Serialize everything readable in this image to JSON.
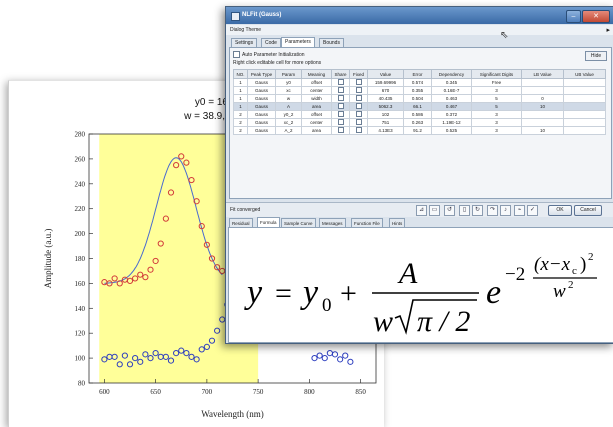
{
  "plot": {
    "annotation_line1": "y0 = 160, xc = 670",
    "annotation_line2": "w = 38.9, A = 4.92E+03",
    "ylabel": "Amplitude (a.u.)",
    "xlabel": "Wavelength (nm)",
    "highlight_color": "#ffff99",
    "series_red_color": "#d23b3b",
    "series_blue_color": "#2e3fbf",
    "fit_line_color": "#4a6bd0"
  },
  "chart_data": {
    "type": "scatter",
    "xlabel": "Wavelength (nm)",
    "ylabel": "Amplitude (a.u.)",
    "xlim": [
      585,
      865
    ],
    "ylim": [
      80,
      280
    ],
    "xticks": [
      "600",
      "650",
      "700",
      "750",
      "800",
      "850"
    ],
    "yticks": [
      "80",
      "100",
      "120",
      "140",
      "160",
      "180",
      "200",
      "220",
      "240",
      "260",
      "280"
    ],
    "highlight_range": [
      595,
      750
    ],
    "fit": {
      "model": "Gauss",
      "y0": 160,
      "xc": 670,
      "w": 38.9,
      "A": 4920
    },
    "series": [
      {
        "color": "#d23b3b",
        "x": [
          600,
          605,
          610,
          615,
          620,
          625,
          630,
          635,
          640,
          645,
          650,
          655,
          660,
          665,
          670,
          675,
          680,
          685,
          690,
          695,
          700,
          705,
          710,
          715
        ],
        "y": [
          161,
          160,
          164,
          160,
          163,
          162,
          164,
          167,
          165,
          171,
          178,
          192,
          212,
          233,
          255,
          262,
          257,
          243,
          226,
          206,
          191,
          180,
          173,
          170
        ]
      },
      {
        "color": "#2e3fbf",
        "x": [
          600,
          605,
          610,
          615,
          620,
          625,
          630,
          635,
          640,
          645,
          650,
          655,
          660,
          665,
          670,
          675,
          680,
          685,
          690,
          695,
          700,
          705,
          710,
          715,
          720,
          725,
          730,
          735,
          740,
          805,
          810,
          815,
          820,
          825,
          830,
          835,
          840
        ],
        "y": [
          99,
          101,
          101,
          95,
          102,
          95,
          100,
          97,
          103,
          100,
          104,
          101,
          101,
          98,
          104,
          106,
          104,
          101,
          99,
          107,
          109,
          114,
          122,
          131,
          143,
          158,
          176,
          196,
          216,
          100,
          102,
          100,
          104,
          103,
          99,
          102,
          97
        ]
      }
    ]
  },
  "dialog": {
    "title": "NLFit (Gauss)",
    "theme_label": "Dialog Theme",
    "tabs": [
      "Settings",
      "Code",
      "Parameters",
      "Bounds"
    ],
    "auto_param_label": "Auto Parameter Initialization",
    "hint": "Right click editable cell for more options",
    "hide_label": "Hide",
    "columns": [
      "NO.",
      "Peak Type",
      "Param",
      "Meaning",
      "Share",
      "Fixed",
      "Value",
      "Error",
      "Dependency",
      "Significant Digits",
      "LB Value",
      "UB Value"
    ],
    "rows": [
      [
        "1",
        "Gauss",
        "y0",
        "offset",
        "",
        "",
        "159.69996",
        "0.574",
        "0.345",
        "Free",
        "",
        ""
      ],
      [
        "1",
        "Gauss",
        "xc",
        "center",
        "",
        "",
        "670",
        "0.355",
        "0.16E-7",
        "3",
        "",
        ""
      ],
      [
        "1",
        "Gauss",
        "w",
        "width",
        "",
        "",
        "40.435",
        "0.504",
        "0.463",
        "5",
        "0",
        ""
      ],
      [
        "1",
        "Gauss",
        "A",
        "area",
        "",
        "",
        "5062.3",
        "66.1",
        "0.467",
        "5",
        "10",
        ""
      ],
      [
        "2",
        "Gauss",
        "y0_2",
        "offset",
        "",
        "",
        "102",
        "0.586",
        "0.372",
        "3",
        "",
        ""
      ],
      [
        "2",
        "Gauss",
        "xc_2",
        "center",
        "",
        "",
        "751",
        "0.263",
        "1.19E-12",
        "3",
        "",
        ""
      ],
      [
        "2",
        "Gauss",
        "A_2",
        "area",
        "",
        "",
        "4.13E3",
        "91.2",
        "0.525",
        "3",
        "10",
        ""
      ]
    ],
    "fit_status": "Fit converged",
    "ok_label": "OK",
    "cancel_label": "Cancel",
    "bottom_tabs": [
      "Residual",
      "Formula",
      "Sample Curve",
      "Messages",
      "Function File",
      "Hints"
    ],
    "active_bottom_tab": "Formula",
    "formula": {
      "lhs": "y",
      "y0_base": "y",
      "y0_sub": "0",
      "numerator": "A",
      "den_w": "w",
      "den_pi": "π / 2",
      "e": "e",
      "exp_neg2": "−2",
      "exp_num": "(x−x",
      "exp_num_sub": "c",
      "exp_num_close": ")",
      "exp_num_pow": "2",
      "exp_den": "w",
      "exp_den_pow": "2"
    }
  }
}
